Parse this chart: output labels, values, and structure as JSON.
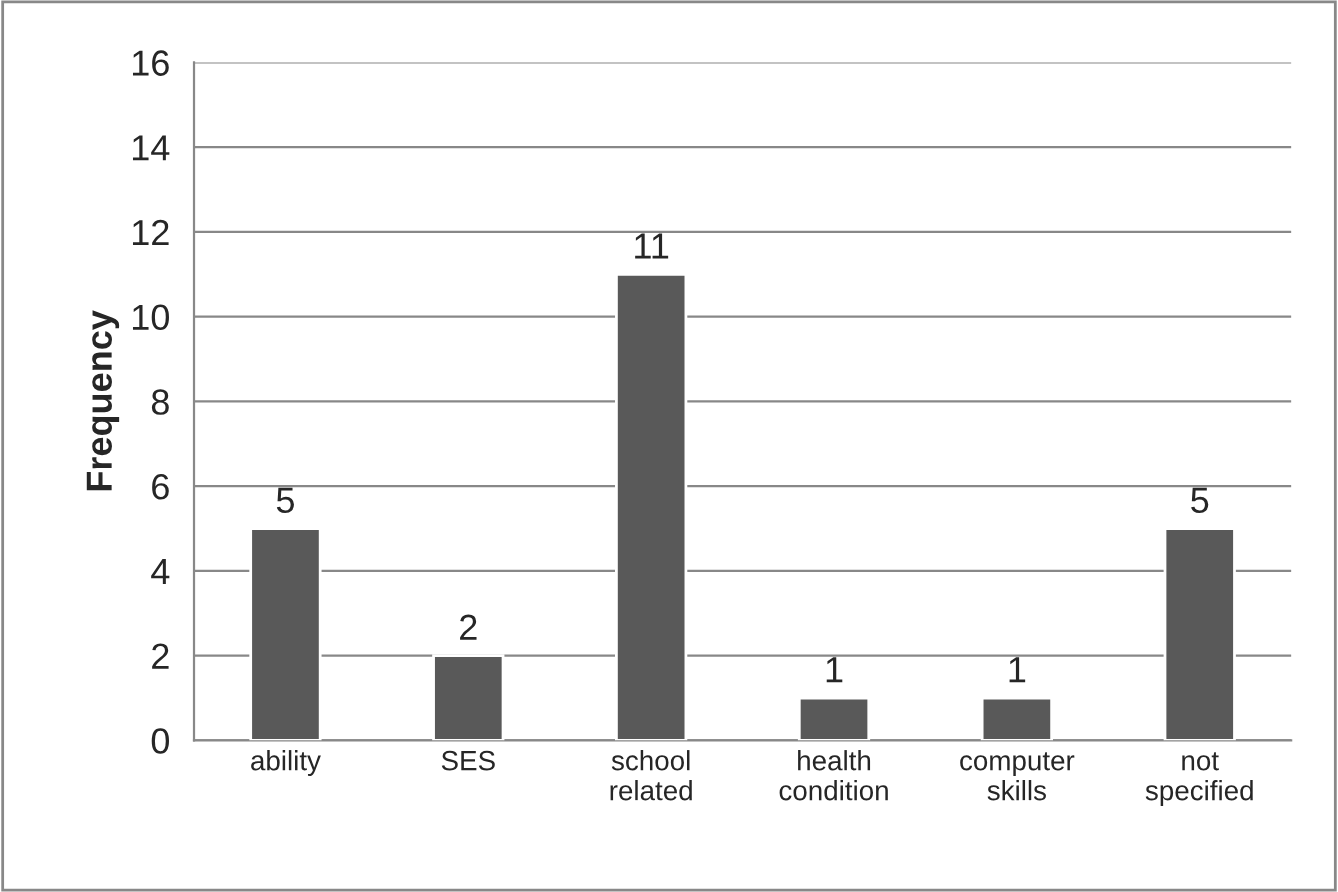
{
  "chart_data": {
    "type": "bar",
    "ylabel": "Frequency",
    "categories": [
      "ability",
      "SES",
      "school\nrelated",
      "health\ncondition",
      "computer\nskills",
      "not\nspecified"
    ],
    "values": [
      5,
      2,
      11,
      1,
      1,
      5
    ],
    "color": "#595959",
    "ylim": [
      0,
      16
    ],
    "yticks": [
      0,
      2,
      4,
      6,
      8,
      10,
      12,
      14,
      16
    ],
    "grid": "y",
    "data_labels": true
  }
}
